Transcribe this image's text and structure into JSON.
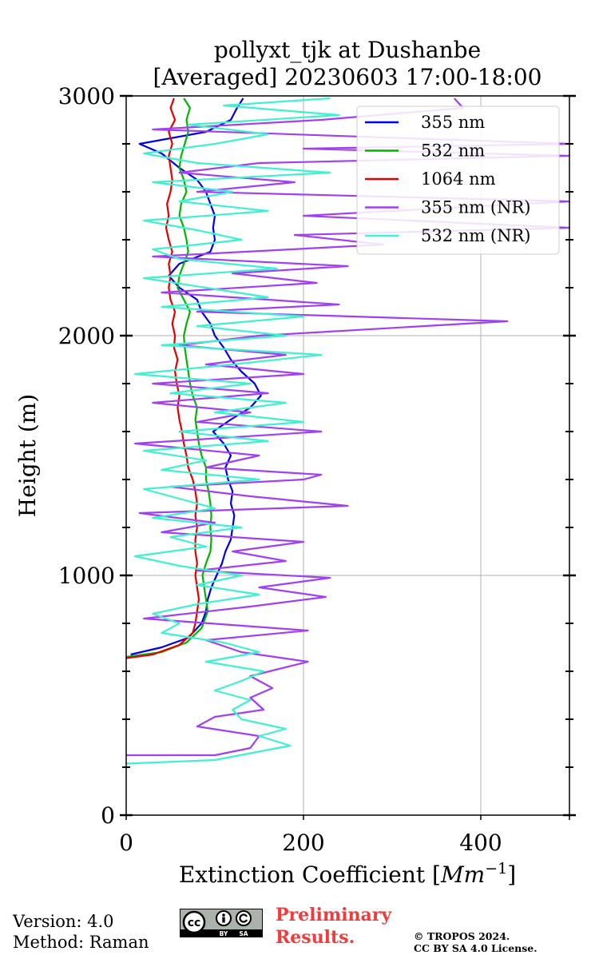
{
  "chart_data": {
    "type": "line",
    "title": "pollyxt_tjk at Dushanbe",
    "subtitle": "[Averaged] 20230603 17:00-18:00",
    "xlabel": "Extinction Coefficient [Mm⁻¹]",
    "ylabel": "Height (m)",
    "xlim": [
      0,
      500
    ],
    "ylim": [
      0,
      3000
    ],
    "xticks": [
      "0",
      "200",
      "400"
    ],
    "xtick_values": [
      0,
      200,
      400
    ],
    "yticks": [
      "0",
      "1000",
      "2000",
      "3000"
    ],
    "ytick_values": [
      0,
      1000,
      2000,
      3000
    ],
    "grid": true,
    "legend_position": "top-right",
    "series": [
      {
        "name": "355 nm",
        "color": "#0000e6",
        "points": [
          [
            5,
            670
          ],
          [
            40,
            700
          ],
          [
            70,
            740
          ],
          [
            85,
            800
          ],
          [
            90,
            850
          ],
          [
            92,
            900
          ],
          [
            96,
            950
          ],
          [
            102,
            1000
          ],
          [
            108,
            1050
          ],
          [
            112,
            1100
          ],
          [
            118,
            1150
          ],
          [
            120,
            1200
          ],
          [
            122,
            1250
          ],
          [
            118,
            1300
          ],
          [
            120,
            1350
          ],
          [
            115,
            1400
          ],
          [
            112,
            1450
          ],
          [
            118,
            1500
          ],
          [
            110,
            1550
          ],
          [
            98,
            1600
          ],
          [
            118,
            1650
          ],
          [
            140,
            1700
          ],
          [
            152,
            1750
          ],
          [
            145,
            1800
          ],
          [
            130,
            1850
          ],
          [
            118,
            1900
          ],
          [
            110,
            1950
          ],
          [
            100,
            2000
          ],
          [
            95,
            2050
          ],
          [
            85,
            2100
          ],
          [
            80,
            2150
          ],
          [
            60,
            2200
          ],
          [
            48,
            2250
          ],
          [
            60,
            2300
          ],
          [
            95,
            2350
          ],
          [
            100,
            2400
          ],
          [
            98,
            2450
          ],
          [
            100,
            2500
          ],
          [
            95,
            2550
          ],
          [
            90,
            2600
          ],
          [
            80,
            2650
          ],
          [
            60,
            2700
          ],
          [
            40,
            2760
          ],
          [
            15,
            2800
          ],
          [
            90,
            2850
          ],
          [
            118,
            2900
          ],
          [
            125,
            2950
          ],
          [
            132,
            2990
          ]
        ]
      },
      {
        "name": "532 nm",
        "color": "#00b400",
        "points": [
          [
            0,
            660
          ],
          [
            40,
            680
          ],
          [
            68,
            720
          ],
          [
            85,
            780
          ],
          [
            92,
            850
          ],
          [
            90,
            900
          ],
          [
            88,
            950
          ],
          [
            86,
            1000
          ],
          [
            90,
            1050
          ],
          [
            95,
            1100
          ],
          [
            96,
            1150
          ],
          [
            95,
            1200
          ],
          [
            96,
            1250
          ],
          [
            95,
            1300
          ],
          [
            93,
            1350
          ],
          [
            90,
            1400
          ],
          [
            90,
            1450
          ],
          [
            85,
            1500
          ],
          [
            82,
            1550
          ],
          [
            80,
            1600
          ],
          [
            78,
            1650
          ],
          [
            80,
            1700
          ],
          [
            75,
            1750
          ],
          [
            72,
            1800
          ],
          [
            70,
            1850
          ],
          [
            68,
            1900
          ],
          [
            66,
            1950
          ],
          [
            65,
            2000
          ],
          [
            68,
            2050
          ],
          [
            72,
            2100
          ],
          [
            65,
            2150
          ],
          [
            58,
            2200
          ],
          [
            60,
            2250
          ],
          [
            65,
            2300
          ],
          [
            70,
            2350
          ],
          [
            68,
            2400
          ],
          [
            65,
            2450
          ],
          [
            60,
            2500
          ],
          [
            62,
            2550
          ],
          [
            68,
            2600
          ],
          [
            65,
            2650
          ],
          [
            60,
            2700
          ],
          [
            62,
            2750
          ],
          [
            66,
            2800
          ],
          [
            70,
            2850
          ],
          [
            68,
            2900
          ],
          [
            72,
            2950
          ],
          [
            65,
            2990
          ]
        ]
      },
      {
        "name": "1064 nm",
        "color": "#e00000",
        "points": [
          [
            0,
            655
          ],
          [
            30,
            670
          ],
          [
            60,
            710
          ],
          [
            75,
            760
          ],
          [
            78,
            800
          ],
          [
            80,
            850
          ],
          [
            82,
            900
          ],
          [
            80,
            950
          ],
          [
            78,
            1000
          ],
          [
            80,
            1050
          ],
          [
            78,
            1100
          ],
          [
            78,
            1150
          ],
          [
            80,
            1200
          ],
          [
            78,
            1250
          ],
          [
            80,
            1300
          ],
          [
            78,
            1350
          ],
          [
            75,
            1400
          ],
          [
            70,
            1450
          ],
          [
            68,
            1500
          ],
          [
            65,
            1550
          ],
          [
            63,
            1600
          ],
          [
            60,
            1650
          ],
          [
            58,
            1700
          ],
          [
            60,
            1750
          ],
          [
            57,
            1800
          ],
          [
            55,
            1850
          ],
          [
            58,
            1900
          ],
          [
            54,
            1950
          ],
          [
            55,
            2000
          ],
          [
            52,
            2050
          ],
          [
            55,
            2100
          ],
          [
            50,
            2150
          ],
          [
            48,
            2200
          ],
          [
            50,
            2250
          ],
          [
            48,
            2300
          ],
          [
            52,
            2350
          ],
          [
            48,
            2400
          ],
          [
            45,
            2450
          ],
          [
            48,
            2500
          ],
          [
            46,
            2550
          ],
          [
            50,
            2600
          ],
          [
            52,
            2650
          ],
          [
            50,
            2700
          ],
          [
            48,
            2750
          ],
          [
            52,
            2800
          ],
          [
            48,
            2850
          ],
          [
            55,
            2900
          ],
          [
            50,
            2950
          ],
          [
            54,
            2990
          ]
        ]
      },
      {
        "name": "355 nm (NR)",
        "color": "#a040f0",
        "points": [
          [
            0,
            250
          ],
          [
            100,
            250
          ],
          [
            140,
            280
          ],
          [
            150,
            330
          ],
          [
            80,
            370
          ],
          [
            100,
            410
          ],
          [
            155,
            440
          ],
          [
            140,
            490
          ],
          [
            165,
            530
          ],
          [
            140,
            580
          ],
          [
            205,
            640
          ],
          [
            130,
            680
          ],
          [
            90,
            730
          ],
          [
            205,
            770
          ],
          [
            20,
            820
          ],
          [
            140,
            870
          ],
          [
            225,
            910
          ],
          [
            150,
            950
          ],
          [
            230,
            990
          ],
          [
            80,
            1020
          ],
          [
            180,
            1060
          ],
          [
            120,
            1100
          ],
          [
            200,
            1140
          ],
          [
            40,
            1180
          ],
          [
            100,
            1220
          ],
          [
            15,
            1260
          ],
          [
            250,
            1290
          ],
          [
            140,
            1330
          ],
          [
            50,
            1370
          ],
          [
            200,
            1400
          ],
          [
            220,
            1420
          ],
          [
            90,
            1450
          ],
          [
            150,
            1500
          ],
          [
            10,
            1550
          ],
          [
            220,
            1600
          ],
          [
            80,
            1640
          ],
          [
            140,
            1680
          ],
          [
            30,
            1720
          ],
          [
            160,
            1760
          ],
          [
            30,
            1800
          ],
          [
            200,
            1840
          ],
          [
            90,
            1880
          ],
          [
            180,
            1920
          ],
          [
            60,
            1960
          ],
          [
            150,
            2000
          ],
          [
            430,
            2060
          ],
          [
            80,
            2100
          ],
          [
            240,
            2130
          ],
          [
            40,
            2180
          ],
          [
            215,
            2220
          ],
          [
            120,
            2260
          ],
          [
            250,
            2290
          ],
          [
            30,
            2330
          ],
          [
            290,
            2380
          ],
          [
            190,
            2420
          ],
          [
            500,
            2450
          ],
          [
            200,
            2500
          ],
          [
            500,
            2560
          ],
          [
            80,
            2600
          ],
          [
            190,
            2640
          ],
          [
            60,
            2680
          ],
          [
            150,
            2720
          ],
          [
            500,
            2750
          ],
          [
            200,
            2780
          ],
          [
            500,
            2800
          ],
          [
            30,
            2860
          ],
          [
            220,
            2900
          ],
          [
            380,
            2950
          ],
          [
            370,
            2990
          ]
        ]
      },
      {
        "name": "532 nm (NR)",
        "color": "#40f0d0",
        "points": [
          [
            0,
            215
          ],
          [
            100,
            230
          ],
          [
            185,
            290
          ],
          [
            150,
            330
          ],
          [
            180,
            360
          ],
          [
            130,
            400
          ],
          [
            120,
            440
          ],
          [
            140,
            480
          ],
          [
            100,
            520
          ],
          [
            130,
            560
          ],
          [
            155,
            600
          ],
          [
            90,
            640
          ],
          [
            150,
            680
          ],
          [
            110,
            720
          ],
          [
            40,
            760
          ],
          [
            60,
            800
          ],
          [
            30,
            840
          ],
          [
            80,
            880
          ],
          [
            150,
            920
          ],
          [
            80,
            960
          ],
          [
            130,
            1000
          ],
          [
            60,
            1040
          ],
          [
            10,
            1080
          ],
          [
            90,
            1120
          ],
          [
            50,
            1160
          ],
          [
            130,
            1200
          ],
          [
            30,
            1240
          ],
          [
            100,
            1280
          ],
          [
            60,
            1320
          ],
          [
            20,
            1360
          ],
          [
            150,
            1400
          ],
          [
            40,
            1440
          ],
          [
            90,
            1480
          ],
          [
            20,
            1520
          ],
          [
            160,
            1560
          ],
          [
            60,
            1600
          ],
          [
            200,
            1640
          ],
          [
            100,
            1680
          ],
          [
            180,
            1720
          ],
          [
            50,
            1760
          ],
          [
            140,
            1800
          ],
          [
            10,
            1840
          ],
          [
            120,
            1880
          ],
          [
            220,
            1920
          ],
          [
            40,
            1960
          ],
          [
            180,
            2000
          ],
          [
            80,
            2040
          ],
          [
            200,
            2080
          ],
          [
            40,
            2120
          ],
          [
            160,
            2160
          ],
          [
            90,
            2200
          ],
          [
            20,
            2240
          ],
          [
            170,
            2280
          ],
          [
            60,
            2320
          ],
          [
            30,
            2360
          ],
          [
            130,
            2400
          ],
          [
            80,
            2440
          ],
          [
            20,
            2480
          ],
          [
            160,
            2520
          ],
          [
            60,
            2560
          ],
          [
            120,
            2600
          ],
          [
            30,
            2640
          ],
          [
            230,
            2680
          ],
          [
            80,
            2720
          ],
          [
            20,
            2760
          ],
          [
            100,
            2800
          ],
          [
            160,
            2840
          ],
          [
            70,
            2880
          ],
          [
            240,
            2920
          ],
          [
            110,
            2960
          ],
          [
            230,
            2990
          ]
        ]
      }
    ]
  },
  "footer": {
    "version": "Version: 4.0",
    "method": "Method: Raman",
    "preliminary_line1": "Preliminary",
    "preliminary_line2": "Results.",
    "copyright_line1": "© TROPOS 2024.",
    "copyright_line2": "CC BY SA 4.0 License.",
    "cc_badge": {
      "by": "BY",
      "sa": "SA",
      "cc": "cc"
    }
  }
}
